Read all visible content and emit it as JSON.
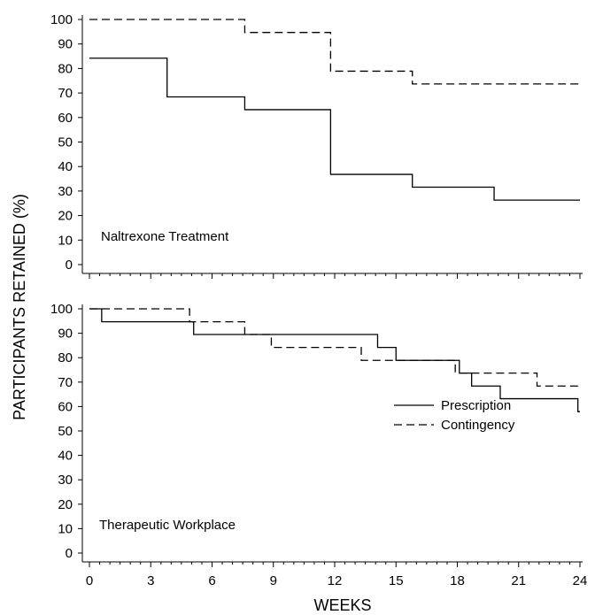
{
  "figure": {
    "ylabel": "PARTICIPANTS RETAINED (%)",
    "xlabel": "WEEKS",
    "x_ticks": [
      "0",
      "3",
      "6",
      "9",
      "12",
      "15",
      "18",
      "21",
      "24"
    ],
    "y_ticks": [
      "0",
      "10",
      "20",
      "30",
      "40",
      "50",
      "60",
      "70",
      "80",
      "90",
      "100"
    ],
    "legend": {
      "prescription": "Prescription",
      "contingency": "Contingency"
    }
  },
  "chart_data": [
    {
      "type": "line",
      "step": true,
      "label": "Naltrexone Treatment",
      "xlim": [
        0,
        24
      ],
      "ylim": [
        0,
        100
      ],
      "series": [
        {
          "name": "Prescription",
          "style": "solid",
          "x": [
            0,
            3.8,
            7.6,
            11.8,
            15.8,
            19.8,
            24
          ],
          "y": [
            84.2,
            68.4,
            63.2,
            36.8,
            31.6,
            26.3,
            26.3
          ]
        },
        {
          "name": "Contingency",
          "style": "dashed",
          "x": [
            0,
            7.6,
            11.8,
            15.8,
            24
          ],
          "y": [
            100,
            94.7,
            78.9,
            73.7,
            73.7
          ]
        }
      ]
    },
    {
      "type": "line",
      "step": true,
      "label": "Therapeutic Workplace",
      "xlim": [
        0,
        24
      ],
      "ylim": [
        0,
        100
      ],
      "series": [
        {
          "name": "Prescription",
          "style": "solid",
          "x": [
            0,
            0.6,
            5.1,
            14.1,
            15.0,
            18.1,
            18.7,
            20.1,
            23.9,
            24
          ],
          "y": [
            100,
            94.7,
            89.5,
            84.2,
            78.9,
            73.7,
            68.4,
            63.2,
            57.9,
            57.9
          ]
        },
        {
          "name": "Contingency",
          "style": "dashed",
          "x": [
            0,
            4.9,
            7.6,
            8.9,
            13.3,
            17.9,
            21.9,
            24
          ],
          "y": [
            100,
            94.7,
            89.5,
            84.2,
            78.9,
            73.7,
            68.4,
            68.4
          ]
        }
      ]
    }
  ]
}
